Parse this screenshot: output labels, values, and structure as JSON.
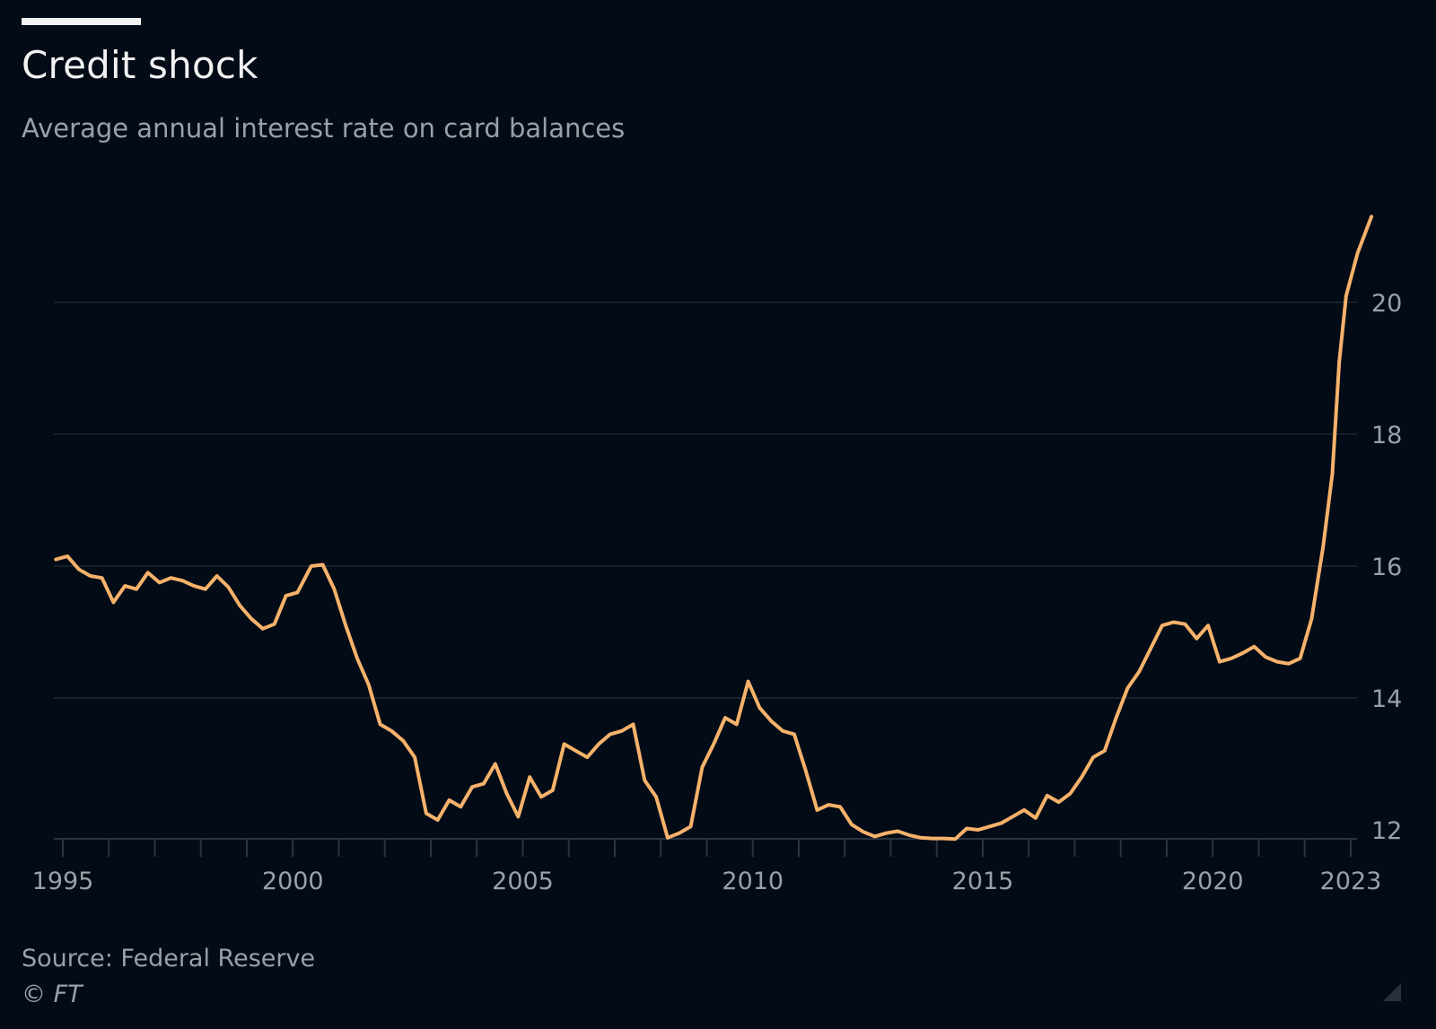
{
  "chart_data": {
    "type": "line",
    "title": "Credit shock",
    "subtitle": "Average annual interest rate on card balances",
    "xlabel": "",
    "ylabel": "",
    "x_ticks": [
      "1995",
      "2000",
      "2005",
      "2010",
      "2015",
      "2020",
      "2023"
    ],
    "x_tick_values": [
      1995,
      2000,
      2005,
      2010,
      2015,
      2020,
      2023
    ],
    "y_ticks": [
      "12",
      "14",
      "16",
      "18",
      "20"
    ],
    "y_tick_values": [
      12,
      14,
      16,
      18,
      20
    ],
    "xlim": [
      1995,
      2023
    ],
    "ylim": [
      11.8,
      21.6
    ],
    "grid": "horizontal",
    "y_axis_side": "right",
    "line_color": "#f6b26b",
    "series": [
      {
        "name": "Average annual interest rate on card balances",
        "points": [
          [
            1994.85,
            16.1
          ],
          [
            1995.1,
            16.15
          ],
          [
            1995.35,
            15.95
          ],
          [
            1995.6,
            15.85
          ],
          [
            1995.85,
            15.82
          ],
          [
            1996.1,
            15.45
          ],
          [
            1996.35,
            15.7
          ],
          [
            1996.6,
            15.65
          ],
          [
            1996.85,
            15.9
          ],
          [
            1997.1,
            15.75
          ],
          [
            1997.35,
            15.82
          ],
          [
            1997.6,
            15.78
          ],
          [
            1997.85,
            15.7
          ],
          [
            1998.1,
            15.65
          ],
          [
            1998.35,
            15.85
          ],
          [
            1998.6,
            15.68
          ],
          [
            1998.85,
            15.4
          ],
          [
            1999.1,
            15.2
          ],
          [
            1999.35,
            15.05
          ],
          [
            1999.6,
            15.12
          ],
          [
            1999.85,
            15.55
          ],
          [
            2000.1,
            15.6
          ],
          [
            2000.4,
            16.0
          ],
          [
            2000.65,
            16.02
          ],
          [
            2000.9,
            15.65
          ],
          [
            2001.15,
            15.1
          ],
          [
            2001.4,
            14.6
          ],
          [
            2001.65,
            14.2
          ],
          [
            2001.9,
            13.6
          ],
          [
            2002.15,
            13.5
          ],
          [
            2002.4,
            13.35
          ],
          [
            2002.65,
            13.1
          ],
          [
            2002.9,
            12.25
          ],
          [
            2003.15,
            12.15
          ],
          [
            2003.4,
            12.45
          ],
          [
            2003.65,
            12.35
          ],
          [
            2003.9,
            12.65
          ],
          [
            2004.15,
            12.7
          ],
          [
            2004.4,
            13.0
          ],
          [
            2004.65,
            12.55
          ],
          [
            2004.9,
            12.2
          ],
          [
            2005.15,
            12.8
          ],
          [
            2005.4,
            12.5
          ],
          [
            2005.65,
            12.6
          ],
          [
            2005.9,
            13.3
          ],
          [
            2006.15,
            13.2
          ],
          [
            2006.4,
            13.1
          ],
          [
            2006.65,
            13.3
          ],
          [
            2006.9,
            13.45
          ],
          [
            2007.15,
            13.5
          ],
          [
            2007.4,
            13.6
          ],
          [
            2007.65,
            12.75
          ],
          [
            2007.9,
            12.5
          ],
          [
            2008.15,
            11.88
          ],
          [
            2008.4,
            11.95
          ],
          [
            2008.65,
            12.05
          ],
          [
            2008.9,
            12.95
          ],
          [
            2009.15,
            13.3
          ],
          [
            2009.4,
            13.7
          ],
          [
            2009.65,
            13.6
          ],
          [
            2009.9,
            14.25
          ],
          [
            2010.15,
            13.85
          ],
          [
            2010.4,
            13.65
          ],
          [
            2010.65,
            13.5
          ],
          [
            2010.9,
            13.45
          ],
          [
            2011.15,
            12.9
          ],
          [
            2011.4,
            12.3
          ],
          [
            2011.65,
            12.38
          ],
          [
            2011.9,
            12.35
          ],
          [
            2012.15,
            12.08
          ],
          [
            2012.4,
            11.97
          ],
          [
            2012.65,
            11.9
          ],
          [
            2012.9,
            11.95
          ],
          [
            2013.15,
            11.98
          ],
          [
            2013.4,
            11.92
          ],
          [
            2013.65,
            11.88
          ],
          [
            2013.9,
            11.87
          ],
          [
            2014.15,
            11.87
          ],
          [
            2014.4,
            11.86
          ],
          [
            2014.65,
            12.02
          ],
          [
            2014.9,
            12.0
          ],
          [
            2015.15,
            12.05
          ],
          [
            2015.4,
            12.1
          ],
          [
            2015.65,
            12.2
          ],
          [
            2015.9,
            12.3
          ],
          [
            2016.15,
            12.18
          ],
          [
            2016.4,
            12.52
          ],
          [
            2016.65,
            12.42
          ],
          [
            2016.9,
            12.55
          ],
          [
            2017.15,
            12.8
          ],
          [
            2017.4,
            13.1
          ],
          [
            2017.65,
            13.2
          ],
          [
            2017.9,
            13.7
          ],
          [
            2018.15,
            14.15
          ],
          [
            2018.4,
            14.4
          ],
          [
            2018.65,
            14.75
          ],
          [
            2018.9,
            15.1
          ],
          [
            2019.15,
            15.15
          ],
          [
            2019.4,
            15.12
          ],
          [
            2019.65,
            14.9
          ],
          [
            2019.9,
            15.1
          ],
          [
            2020.15,
            14.55
          ],
          [
            2020.4,
            14.6
          ],
          [
            2020.65,
            14.68
          ],
          [
            2020.9,
            14.78
          ],
          [
            2021.15,
            14.62
          ],
          [
            2021.4,
            14.55
          ],
          [
            2021.65,
            14.52
          ],
          [
            2021.9,
            14.6
          ],
          [
            2022.15,
            15.2
          ],
          [
            2022.4,
            16.3
          ],
          [
            2022.6,
            17.4
          ],
          [
            2022.75,
            19.1
          ],
          [
            2022.9,
            20.1
          ],
          [
            2023.15,
            20.75
          ],
          [
            2023.45,
            21.3
          ]
        ]
      }
    ]
  },
  "footer": {
    "source": "Source: Federal Reserve",
    "copyright": "© FT"
  }
}
